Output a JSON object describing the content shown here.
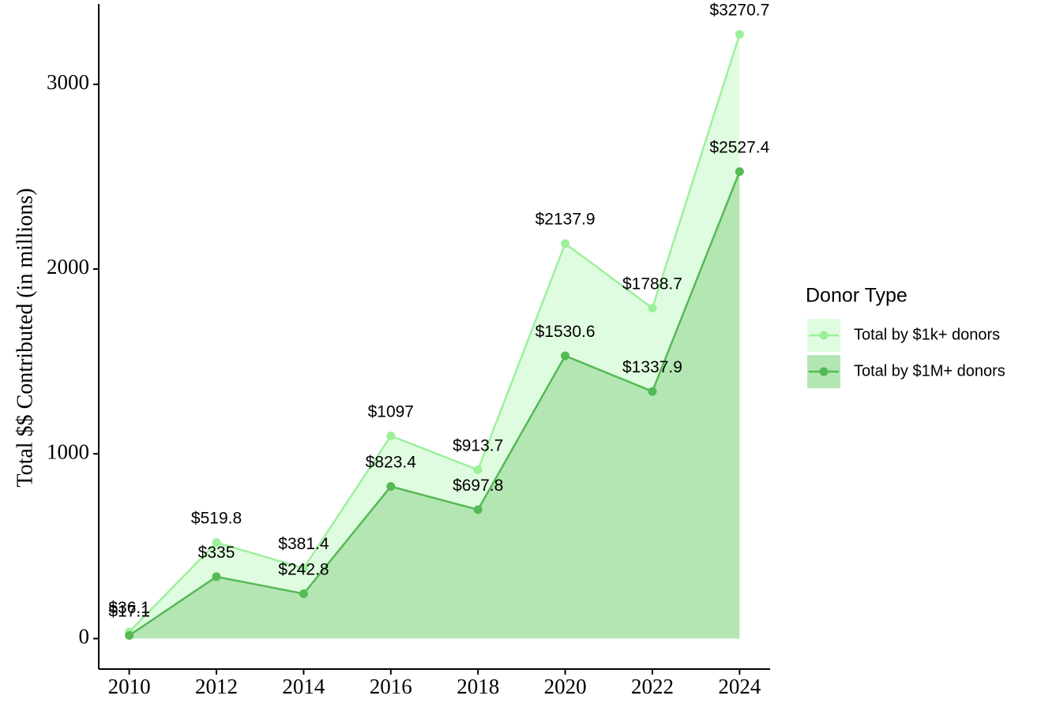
{
  "chart_data": {
    "type": "area",
    "y_label": "Total $$ Contributed (in millions)",
    "legend_title": "Donor Type",
    "x": [
      2010,
      2012,
      2014,
      2016,
      2018,
      2020,
      2022,
      2024
    ],
    "series": [
      {
        "name": "Total by $1k+ donors",
        "color": "#9cf09c",
        "area_color": "#e0fce0",
        "values": [
          36.1,
          519.8,
          381.4,
          1097,
          913.7,
          2137.9,
          1788.7,
          3270.7
        ],
        "value_labels": [
          "$36.1",
          "$519.8",
          "$381.4",
          "$1097",
          "$913.7",
          "$2137.9",
          "$1788.7",
          "$3270.7"
        ]
      },
      {
        "name": "Total by $1M+ donors",
        "color": "#55b955",
        "area_color": "#b3e6b3",
        "values": [
          17.1,
          335,
          242.8,
          823.4,
          697.8,
          1530.6,
          1337.9,
          2527.4
        ],
        "value_labels": [
          "$17.1",
          "$335",
          "$242.8",
          "$823.4",
          "$697.8",
          "$1530.6",
          "$1337.9",
          "$2527.4"
        ]
      }
    ],
    "xlim": [
      2009.3,
      2024.7
    ],
    "ylim": [
      -165,
      3435
    ],
    "xticks": [
      2010,
      2012,
      2014,
      2016,
      2018,
      2020,
      2022,
      2024
    ],
    "yticks": [
      0,
      1000,
      2000,
      3000
    ],
    "grid": false,
    "legend": "right"
  }
}
